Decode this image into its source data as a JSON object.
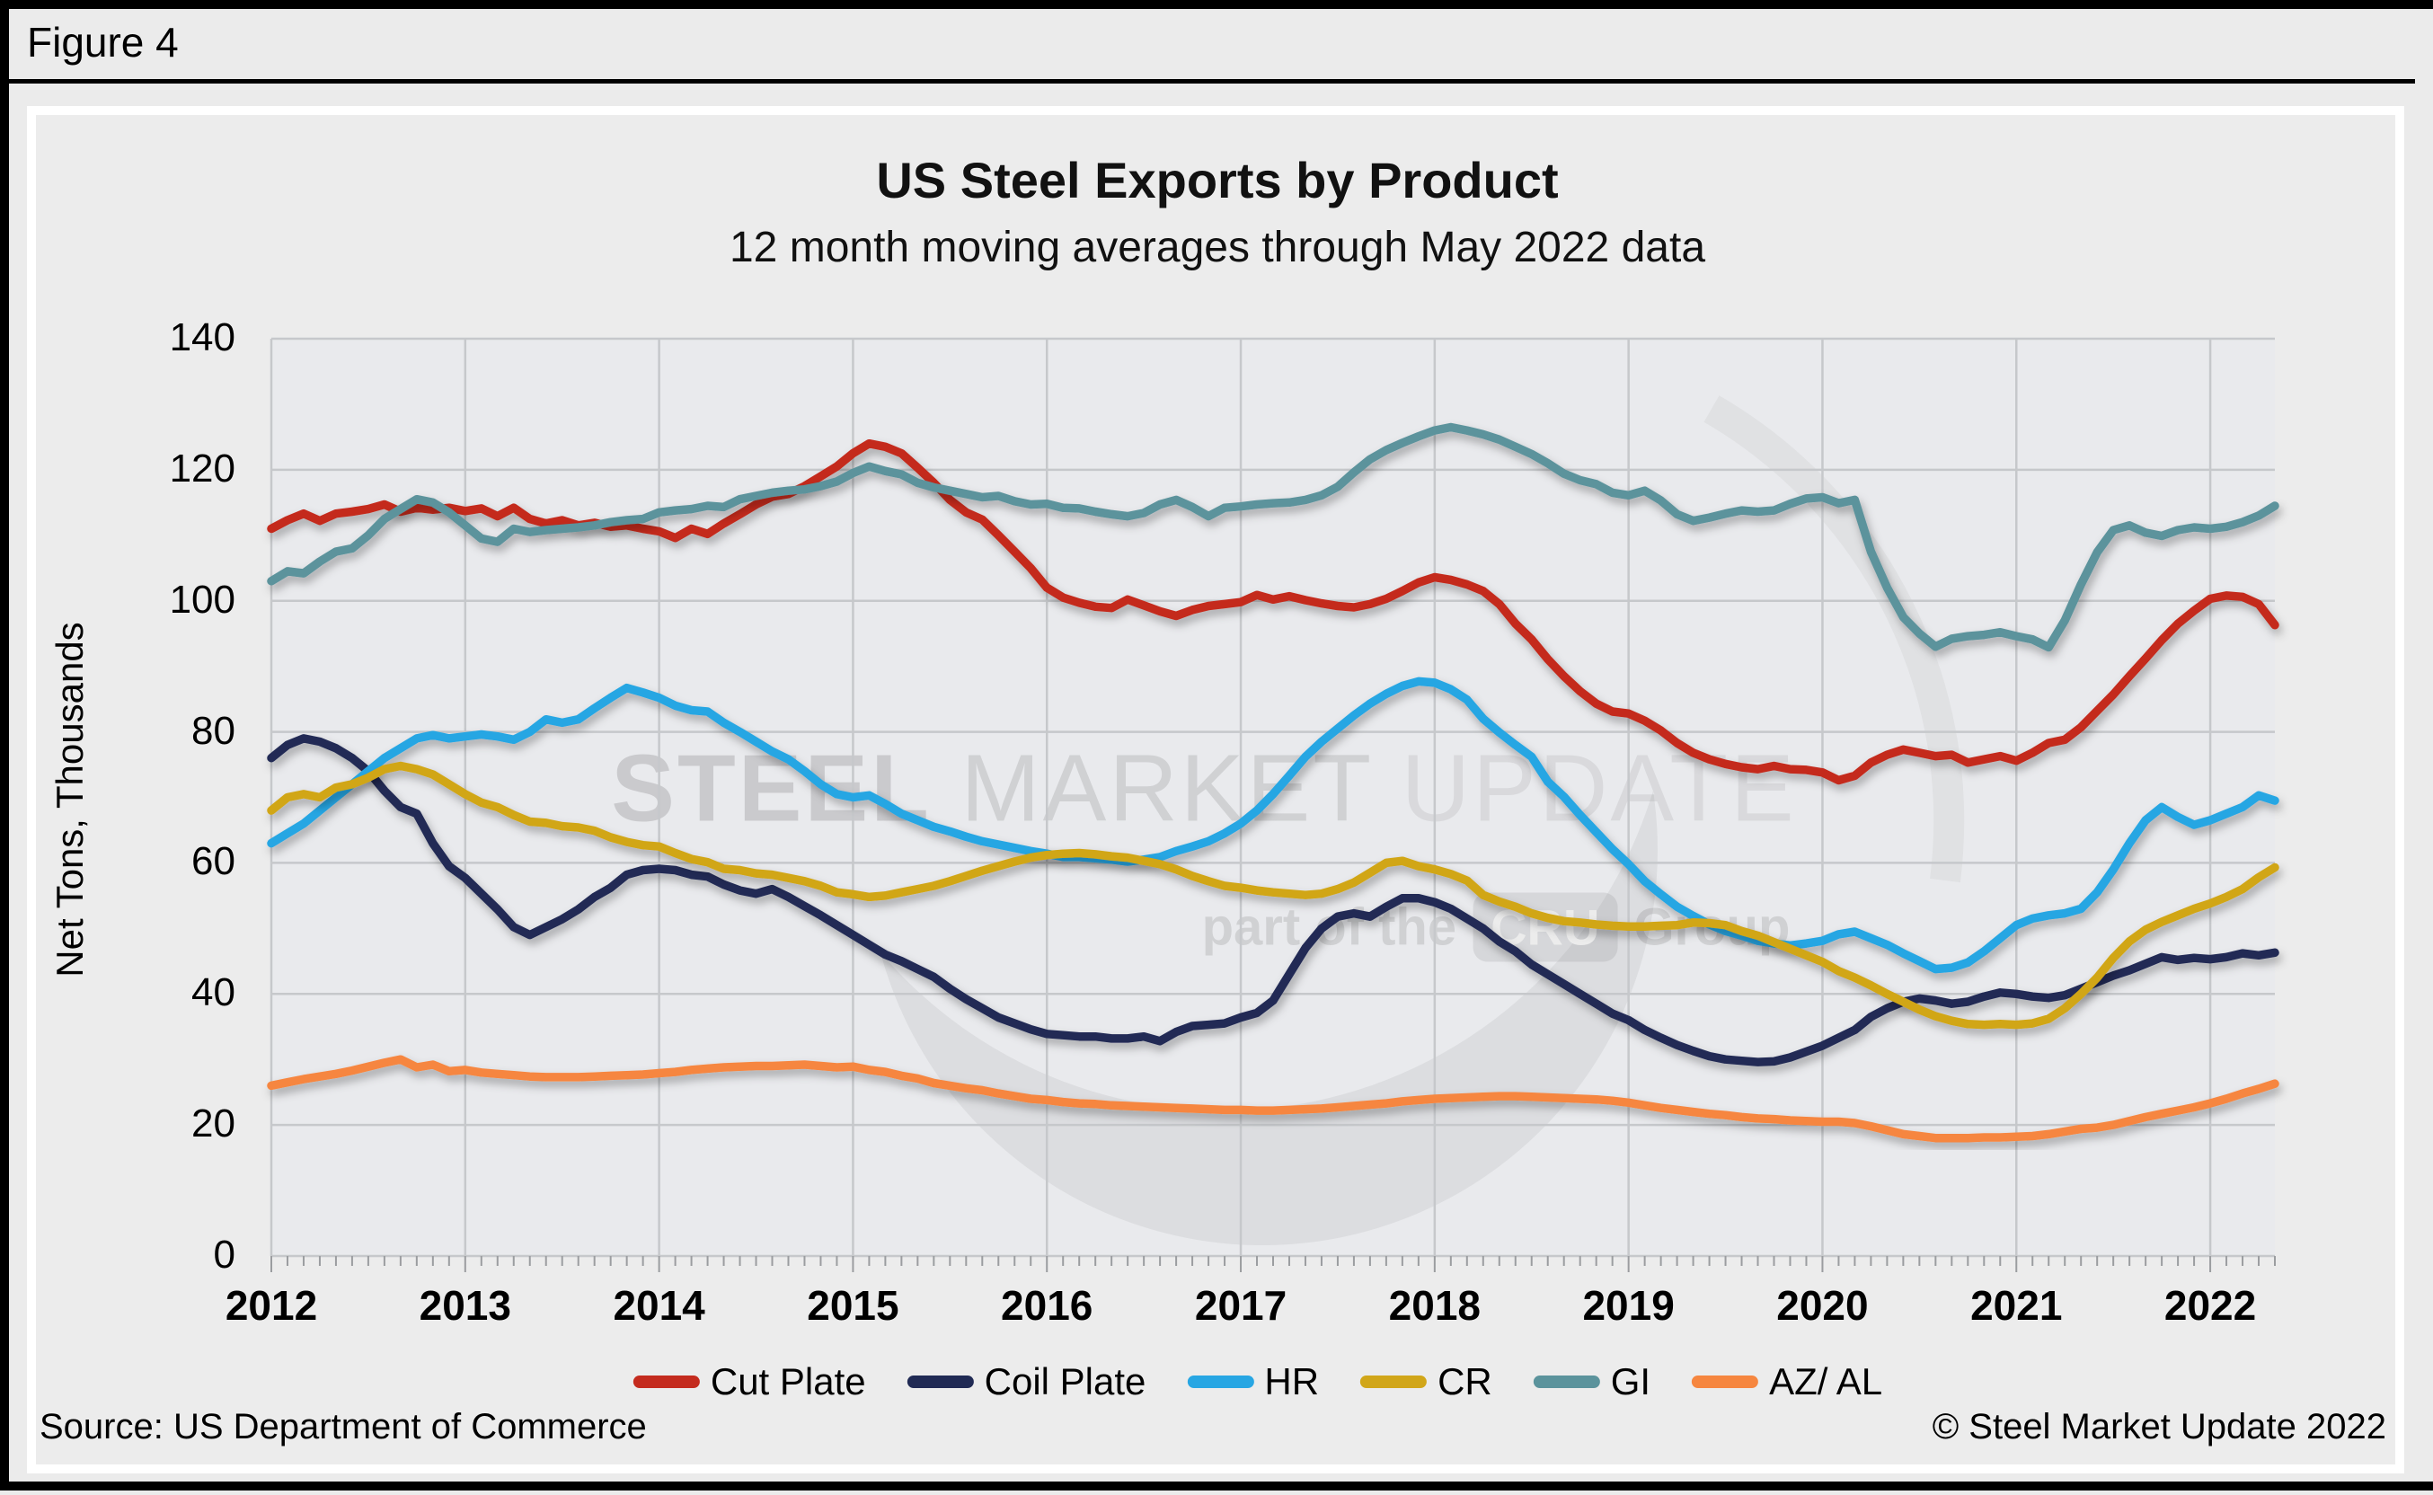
{
  "frame": {
    "figure_label": "Figure 4"
  },
  "header": {
    "title": "US Steel Exports by Product",
    "subtitle": "12 month moving averages through May 2022 data"
  },
  "footer": {
    "source": "Source: US Department of Commerce",
    "copyright": "© Steel Market Update 2022"
  },
  "watermark": {
    "word1": "STEEL",
    "word2": " MARKET ",
    "word3": "UPDATE",
    "tagline_prefix": "part of the",
    "tagline_box": "CRU",
    "tagline_suffix": "Group"
  },
  "chart_data": {
    "type": "line",
    "title": "US Steel Exports by Product",
    "subtitle": "12 month moving averages through May 2022 data",
    "xlabel": "",
    "ylabel": "Net Tons, Thousands",
    "ylim": [
      0,
      140
    ],
    "y_ticks": [
      0,
      20,
      40,
      60,
      80,
      100,
      120,
      140
    ],
    "x_start": "2012-01",
    "x_end": "2022-05",
    "x_tick_labels": [
      "2012",
      "2013",
      "2014",
      "2015",
      "2016",
      "2017",
      "2018",
      "2019",
      "2020",
      "2021",
      "2022"
    ],
    "points_per_year": 12,
    "grid": true,
    "legend_position": "bottom",
    "colors": {
      "grid": "#c6c8cb",
      "plot_background": "#e9eaed",
      "page_background": "#ebebeb"
    },
    "series": [
      {
        "name": "Cut Plate",
        "color": "#c42b1e",
        "values": [
          111.0,
          112.3,
          113.3,
          112.2,
          113.3,
          113.6,
          114.0,
          114.7,
          113.6,
          114.2,
          113.9,
          114.2,
          113.7,
          114.1,
          112.9,
          114.2,
          112.5,
          111.8,
          112.3,
          111.5,
          111.9,
          111.3,
          111.5,
          111.0,
          110.6,
          109.6,
          111.0,
          110.2,
          111.8,
          113.2,
          114.7,
          115.9,
          116.3,
          117.5,
          119.0,
          120.5,
          122.5,
          124.0,
          123.5,
          122.5,
          120.3,
          118.0,
          115.4,
          113.5,
          112.4,
          110.0,
          107.5,
          105.0,
          102.0,
          100.5,
          99.7,
          99.1,
          98.9,
          100.2,
          99.3,
          98.4,
          97.7,
          98.6,
          99.2,
          99.5,
          99.8,
          100.9,
          100.2,
          100.7,
          100.1,
          99.6,
          99.2,
          99.0,
          99.5,
          100.3,
          101.5,
          102.8,
          103.6,
          103.2,
          102.5,
          101.5,
          99.5,
          96.5,
          94.1,
          91.1,
          88.5,
          86.2,
          84.3,
          83.1,
          82.8,
          81.7,
          80.2,
          78.3,
          76.8,
          75.8,
          75.1,
          74.6,
          74.3,
          74.8,
          74.3,
          74.2,
          73.8,
          72.6,
          73.3,
          75.3,
          76.5,
          77.3,
          76.8,
          76.3,
          76.5,
          75.3,
          75.8,
          76.3,
          75.6,
          76.8,
          78.3,
          78.8,
          80.7,
          83.2,
          85.7,
          88.5,
          91.2,
          94.0,
          96.5,
          98.5,
          100.3,
          100.8,
          100.6,
          99.5,
          96.3
        ]
      },
      {
        "name": "Coil Plate",
        "color": "#202a54",
        "values": [
          76.0,
          78.0,
          79.0,
          78.5,
          77.5,
          76.0,
          74.0,
          71.0,
          68.5,
          67.5,
          63.0,
          59.5,
          57.7,
          55.3,
          52.9,
          50.2,
          49.0,
          50.2,
          51.4,
          52.9,
          54.8,
          56.2,
          58.2,
          58.9,
          59.1,
          58.9,
          58.2,
          57.9,
          56.7,
          55.8,
          55.3,
          56.0,
          54.8,
          53.4,
          52.0,
          50.5,
          49.0,
          47.5,
          46.0,
          45.0,
          43.8,
          42.6,
          40.8,
          39.2,
          37.8,
          36.4,
          35.5,
          34.6,
          33.9,
          33.7,
          33.5,
          33.5,
          33.2,
          33.2,
          33.5,
          32.8,
          34.2,
          35.1,
          35.3,
          35.5,
          36.4,
          37.1,
          39.0,
          43.0,
          47.0,
          50.0,
          51.8,
          52.3,
          51.8,
          53.3,
          54.6,
          54.6,
          54.0,
          53.0,
          51.5,
          50.0,
          48.0,
          46.5,
          44.5,
          43.0,
          41.5,
          40.0,
          38.5,
          37.0,
          36.0,
          34.5,
          33.3,
          32.2,
          31.3,
          30.5,
          30.0,
          29.8,
          29.6,
          29.7,
          30.3,
          31.2,
          32.1,
          33.3,
          34.5,
          36.5,
          37.8,
          38.8,
          39.3,
          39.0,
          38.5,
          38.8,
          39.6,
          40.2,
          40.0,
          39.6,
          39.4,
          39.8,
          40.8,
          41.8,
          42.8,
          43.6,
          44.6,
          45.6,
          45.2,
          45.5,
          45.3,
          45.6,
          46.2,
          45.9,
          46.3
        ]
      },
      {
        "name": "HR",
        "color": "#27a6e3",
        "values": [
          63.0,
          64.5,
          66.0,
          68.0,
          70.0,
          72.0,
          74.0,
          76.0,
          77.5,
          79.0,
          79.5,
          79.0,
          79.3,
          79.6,
          79.3,
          78.8,
          80.0,
          81.9,
          81.4,
          81.9,
          83.6,
          85.2,
          86.7,
          86.0,
          85.2,
          84.0,
          83.3,
          83.1,
          81.4,
          80.0,
          78.5,
          77.0,
          75.8,
          74.0,
          72.0,
          70.5,
          70.0,
          70.3,
          69.0,
          67.5,
          66.5,
          65.5,
          64.8,
          64.0,
          63.3,
          62.8,
          62.3,
          61.8,
          61.4,
          60.9,
          60.9,
          60.7,
          60.5,
          60.2,
          60.5,
          60.9,
          61.8,
          62.5,
          63.3,
          64.5,
          66.0,
          68.0,
          70.5,
          73.3,
          76.2,
          78.5,
          80.5,
          82.5,
          84.3,
          85.8,
          87.0,
          87.7,
          87.5,
          86.5,
          84.9,
          82.0,
          79.9,
          78.0,
          76.2,
          72.4,
          70.1,
          67.3,
          64.7,
          62.1,
          59.8,
          57.2,
          55.2,
          53.3,
          51.9,
          50.6,
          49.6,
          48.9,
          48.1,
          47.7,
          47.4,
          47.7,
          48.1,
          49.1,
          49.5,
          48.5,
          47.5,
          46.2,
          45.0,
          43.8,
          44.0,
          44.8,
          46.5,
          48.5,
          50.5,
          51.5,
          52.0,
          52.3,
          53.0,
          55.5,
          59.0,
          63.0,
          66.5,
          68.5,
          67.0,
          65.8,
          66.5,
          67.5,
          68.5,
          70.3,
          69.5
        ]
      },
      {
        "name": "CR",
        "color": "#d1a619",
        "values": [
          68.0,
          70.0,
          70.5,
          70.0,
          71.5,
          72.0,
          73.0,
          74.3,
          74.8,
          74.3,
          73.5,
          72.0,
          70.5,
          69.2,
          68.5,
          67.3,
          66.3,
          66.1,
          65.6,
          65.4,
          64.9,
          63.9,
          63.2,
          62.7,
          62.5,
          61.5,
          60.6,
          60.1,
          59.1,
          58.9,
          58.4,
          58.2,
          57.7,
          57.2,
          56.5,
          55.5,
          55.2,
          54.8,
          55.0,
          55.5,
          56.0,
          56.5,
          57.2,
          58.0,
          58.8,
          59.5,
          60.2,
          60.8,
          61.2,
          61.4,
          61.5,
          61.3,
          61.0,
          60.8,
          60.3,
          59.8,
          59.0,
          58.0,
          57.2,
          56.5,
          56.2,
          55.8,
          55.5,
          55.3,
          55.1,
          55.3,
          56.0,
          57.0,
          58.5,
          60.0,
          60.3,
          59.5,
          59.0,
          58.3,
          57.3,
          55.1,
          54.1,
          53.3,
          52.3,
          51.6,
          51.1,
          50.9,
          50.6,
          50.4,
          50.3,
          50.3,
          50.4,
          50.5,
          50.9,
          50.8,
          50.5,
          49.6,
          48.9,
          47.9,
          46.9,
          45.9,
          44.9,
          43.5,
          42.5,
          41.3,
          40.0,
          38.8,
          37.6,
          36.6,
          35.9,
          35.4,
          35.3,
          35.4,
          35.3,
          35.5,
          36.2,
          37.8,
          40.0,
          42.5,
          45.5,
          48.0,
          49.8,
          51.0,
          52.0,
          53.0,
          53.8,
          54.8,
          56.0,
          57.8,
          59.3
        ]
      },
      {
        "name": "GI",
        "color": "#5b939c",
        "values": [
          103.0,
          104.5,
          104.2,
          106.0,
          107.5,
          108.0,
          110.0,
          112.5,
          114.0,
          115.5,
          115.0,
          113.5,
          111.5,
          109.5,
          109.0,
          111.0,
          110.5,
          110.8,
          111.0,
          111.2,
          111.5,
          112.0,
          112.3,
          112.5,
          113.5,
          113.8,
          114.0,
          114.5,
          114.3,
          115.5,
          116.0,
          116.5,
          116.8,
          117.0,
          117.5,
          118.2,
          119.5,
          120.5,
          119.8,
          119.3,
          118.0,
          117.3,
          116.8,
          116.3,
          115.8,
          116.0,
          115.2,
          114.7,
          114.8,
          114.2,
          114.1,
          113.6,
          113.2,
          112.9,
          113.4,
          114.7,
          115.4,
          114.3,
          112.9,
          114.2,
          114.4,
          114.7,
          114.9,
          115.0,
          115.4,
          116.1,
          117.4,
          119.6,
          121.6,
          123.0,
          124.1,
          125.1,
          126.0,
          126.5,
          126.0,
          125.4,
          124.6,
          123.5,
          122.4,
          121.0,
          119.4,
          118.4,
          117.8,
          116.5,
          116.1,
          116.8,
          115.3,
          113.2,
          112.2,
          112.7,
          113.3,
          113.8,
          113.6,
          113.8,
          114.8,
          115.6,
          115.8,
          114.9,
          115.4,
          107.5,
          102.0,
          97.5,
          95.0,
          93.0,
          94.2,
          94.6,
          94.8,
          95.2,
          94.6,
          94.1,
          92.9,
          97.0,
          102.5,
          107.4,
          110.8,
          111.5,
          110.4,
          109.9,
          110.8,
          111.2,
          111.0,
          111.3,
          112.0,
          113.0,
          114.5
        ]
      },
      {
        "name": "AZ/ AL",
        "color": "#f6863f",
        "values": [
          26.0,
          26.5,
          27.0,
          27.4,
          27.8,
          28.3,
          28.9,
          29.5,
          30.0,
          28.8,
          29.2,
          28.2,
          28.4,
          28.0,
          27.8,
          27.6,
          27.4,
          27.3,
          27.3,
          27.3,
          27.4,
          27.5,
          27.6,
          27.7,
          27.9,
          28.1,
          28.4,
          28.6,
          28.8,
          28.9,
          29.0,
          29.0,
          29.1,
          29.2,
          29.0,
          28.8,
          28.9,
          28.4,
          28.1,
          27.5,
          27.1,
          26.4,
          26.0,
          25.6,
          25.3,
          24.8,
          24.4,
          24.0,
          23.8,
          23.5,
          23.3,
          23.2,
          23.0,
          22.9,
          22.8,
          22.7,
          22.6,
          22.5,
          22.4,
          22.3,
          22.3,
          22.2,
          22.2,
          22.3,
          22.4,
          22.5,
          22.7,
          22.9,
          23.1,
          23.3,
          23.6,
          23.8,
          24.0,
          24.1,
          24.2,
          24.3,
          24.4,
          24.4,
          24.3,
          24.2,
          24.1,
          24.0,
          23.9,
          23.7,
          23.4,
          23.0,
          22.6,
          22.3,
          22.0,
          21.7,
          21.5,
          21.2,
          21.0,
          20.9,
          20.7,
          20.6,
          20.5,
          20.5,
          20.3,
          19.8,
          19.2,
          18.6,
          18.3,
          18.0,
          18.0,
          18.0,
          18.1,
          18.1,
          18.2,
          18.3,
          18.6,
          19.0,
          19.4,
          19.6,
          20.0,
          20.6,
          21.2,
          21.7,
          22.2,
          22.7,
          23.3,
          24.0,
          24.8,
          25.5,
          26.3
        ]
      }
    ]
  }
}
